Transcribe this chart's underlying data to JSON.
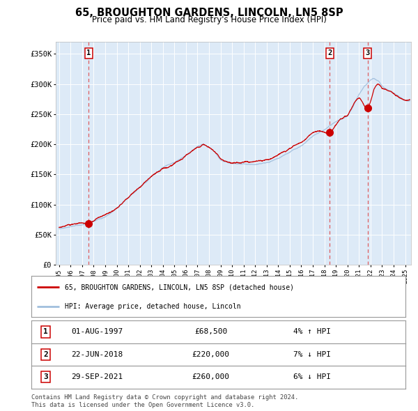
{
  "title": "65, BROUGHTON GARDENS, LINCOLN, LN5 8SP",
  "subtitle": "Price paid vs. HM Land Registry's House Price Index (HPI)",
  "legend_line1": "65, BROUGHTON GARDENS, LINCOLN, LN5 8SP (detached house)",
  "legend_line2": "HPI: Average price, detached house, Lincoln",
  "sales": [
    {
      "num": 1,
      "date": "01-AUG-1997",
      "price": 68500,
      "pct": "4%",
      "dir": "↑",
      "year_x": 1997.58
    },
    {
      "num": 2,
      "date": "22-JUN-2018",
      "price": 220000,
      "pct": "7%",
      "dir": "↓",
      "year_x": 2018.47
    },
    {
      "num": 3,
      "date": "29-SEP-2021",
      "price": 260000,
      "pct": "6%",
      "dir": "↓",
      "year_x": 2021.75
    }
  ],
  "ylabel_ticks": [
    0,
    50000,
    100000,
    150000,
    200000,
    250000,
    300000,
    350000
  ],
  "xlim": [
    1994.7,
    2025.5
  ],
  "ylim": [
    0,
    370000
  ],
  "red_color": "#cc0000",
  "blue_color": "#a0bedd",
  "vline_color": "#dd4444",
  "plot_bg": "#ddeaf7",
  "footer": "Contains HM Land Registry data © Crown copyright and database right 2024.\nThis data is licensed under the Open Government Licence v3.0."
}
